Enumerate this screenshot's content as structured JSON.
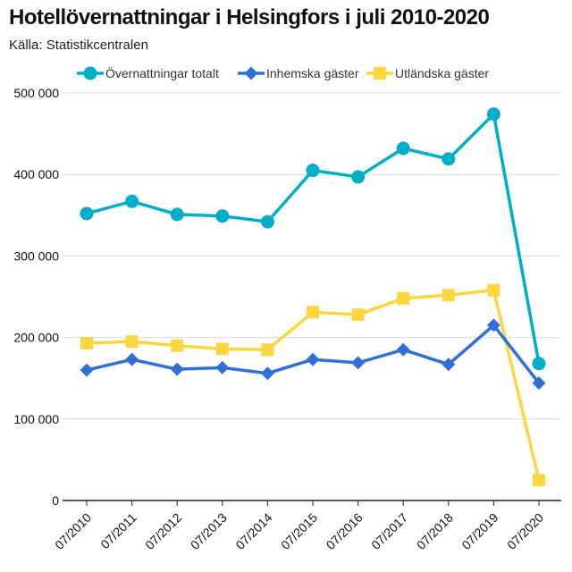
{
  "title": "Hotellövernattningar i Helsingfors i juli 2010-2020",
  "subtitle": "Källa: Statistikcentralen",
  "chart_data": {
    "type": "line",
    "title": "Hotellövernattningar i Helsingfors i juli 2010-2020",
    "subtitle": "Källa: Statistikcentralen",
    "xlabel": "",
    "ylabel": "",
    "categories": [
      "07/2010",
      "07/2011",
      "07/2012",
      "07/2013",
      "07/2014",
      "07/2015",
      "07/2016",
      "07/2017",
      "07/2018",
      "07/2019",
      "07/2020"
    ],
    "ylim": [
      0,
      500000
    ],
    "yticks": [
      0,
      100000,
      200000,
      300000,
      400000,
      500000
    ],
    "ytick_labels": [
      "0",
      "100 000",
      "200 000",
      "300 000",
      "400 000",
      "500 000"
    ],
    "grid": "horizontal",
    "legend_position": "top-left",
    "series": [
      {
        "name": "Övernattningar totalt",
        "color": "#00aec7",
        "marker": "circle",
        "values": [
          352000,
          367000,
          351000,
          349000,
          342000,
          405000,
          397000,
          432000,
          419000,
          474000,
          168000
        ]
      },
      {
        "name": "Inhemska gäster",
        "color": "#2f6fd6",
        "marker": "diamond",
        "values": [
          160000,
          173000,
          161000,
          163000,
          156000,
          173000,
          169000,
          185000,
          167000,
          215000,
          144000
        ]
      },
      {
        "name": "Utländska gäster",
        "color": "#fcd53f",
        "marker": "square",
        "values": [
          193000,
          195000,
          190000,
          186000,
          185000,
          231000,
          228000,
          248000,
          252000,
          258000,
          25000
        ]
      }
    ]
  }
}
